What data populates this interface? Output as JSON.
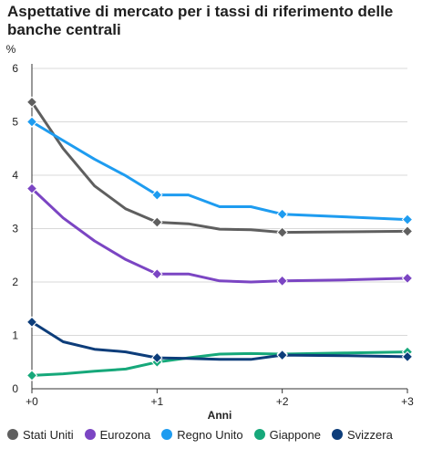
{
  "title": "Aspettative di mercato per i tassi di riferimento delle banche centrali",
  "chart_data": {
    "type": "line",
    "title": "Aspettative di mercato per i tassi di riferimento delle banche centrali",
    "ylabel": "%",
    "xlabel": "Anni",
    "xlim": [
      0,
      3
    ],
    "ylim": [
      0,
      6
    ],
    "x_ticks": [
      {
        "value": 0,
        "label": "+0"
      },
      {
        "value": 1,
        "label": "+1"
      },
      {
        "value": 2,
        "label": "+2"
      },
      {
        "value": 3,
        "label": "+3"
      }
    ],
    "y_ticks": [
      0,
      1,
      2,
      3,
      4,
      5,
      6
    ],
    "y_tick_labels": [
      "0",
      "1",
      "2",
      "3",
      "4",
      "5",
      "6"
    ],
    "grid": "horizontal",
    "legend_position": "bottom",
    "x": [
      0,
      0.25,
      0.5,
      0.75,
      1,
      1.25,
      1.5,
      1.75,
      2,
      2.5,
      3
    ],
    "markers_at": [
      0,
      1,
      2,
      3
    ],
    "series": [
      {
        "name": "Stati Uniti",
        "color": "#5f5f5f",
        "values": [
          5.37,
          4.5,
          3.8,
          3.37,
          3.12,
          3.09,
          2.99,
          2.98,
          2.93,
          2.94,
          2.95
        ]
      },
      {
        "name": "Eurozona",
        "color": "#7b45c3",
        "values": [
          3.75,
          3.2,
          2.77,
          2.42,
          2.15,
          2.15,
          2.02,
          2.0,
          2.02,
          2.04,
          2.07
        ]
      },
      {
        "name": "Regno Unito",
        "color": "#1e9cf0",
        "values": [
          5.0,
          4.65,
          4.3,
          3.99,
          3.63,
          3.63,
          3.41,
          3.41,
          3.27,
          3.22,
          3.17
        ]
      },
      {
        "name": "Giappone",
        "color": "#16a87a",
        "values": [
          0.25,
          0.28,
          0.33,
          0.37,
          0.5,
          0.58,
          0.65,
          0.66,
          0.65,
          0.67,
          0.69
        ]
      },
      {
        "name": "Svizzera",
        "color": "#0d3d7a",
        "values": [
          1.25,
          0.88,
          0.74,
          0.69,
          0.58,
          0.57,
          0.55,
          0.55,
          0.63,
          0.62,
          0.6
        ]
      }
    ]
  }
}
